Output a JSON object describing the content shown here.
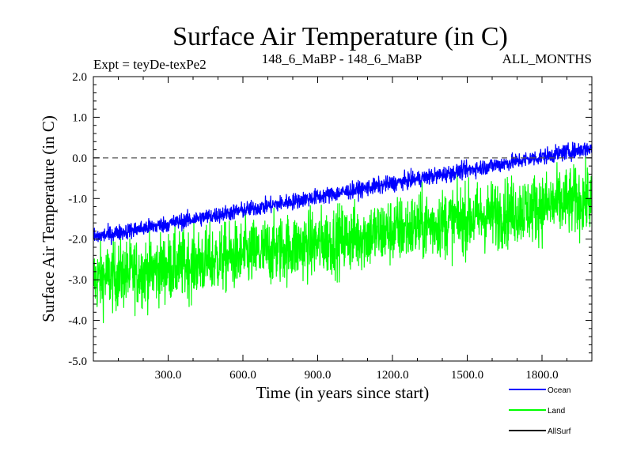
{
  "header": {
    "title": "Surface Air Temperature (in C)",
    "expt": "Expt = teyDe-texPe2",
    "comparison": "148_6_MaBP - 148_6_MaBP",
    "months": "ALL_MONTHS"
  },
  "chart_data": {
    "type": "line",
    "title": "Surface Air Temperature (in C)",
    "xlabel": "Time (in years since start)",
    "ylabel": "Surface Air Temperature (in C)",
    "xlim": [
      0,
      2000
    ],
    "ylim": [
      -5.0,
      2.0
    ],
    "x_ticks": [
      300,
      600,
      900,
      1200,
      1500,
      1800
    ],
    "x_tick_labels": [
      "300.0",
      "600.0",
      "900.0",
      "1200.0",
      "1500.0",
      "1800.0"
    ],
    "y_ticks": [
      2.0,
      1.0,
      0.0,
      -1.0,
      -2.0,
      -3.0,
      -4.0,
      -5.0
    ],
    "y_tick_labels": [
      "2.0",
      "1.0",
      "0.0",
      "-1.0",
      "-2.0",
      "-3.0",
      "-4.0",
      "-5.0"
    ],
    "reference_line": {
      "y": 0.0,
      "style": "dashed"
    },
    "legend_position": "bottom-right, outside plot",
    "series": [
      {
        "name": "Ocean",
        "color": "#0000ff",
        "trend_start": -1.95,
        "trend_end": 0.25,
        "noise_amplitude": 0.35,
        "samples": 2000
      },
      {
        "name": "Land",
        "color": "#00ff00",
        "trend_start": -3.0,
        "trend_end": -1.0,
        "noise_amplitude": 1.5,
        "samples": 2000
      },
      {
        "name": "AllSurf",
        "color": "#000000",
        "trend_start": null,
        "trend_end": null,
        "noise_amplitude": null,
        "samples": 0
      }
    ]
  }
}
